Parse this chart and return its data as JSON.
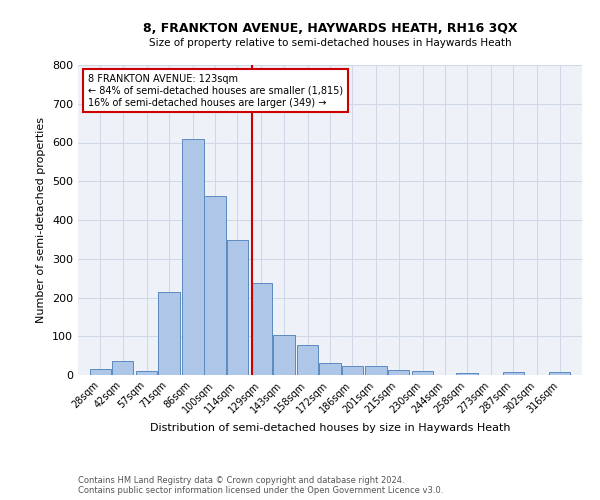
{
  "title": "8, FRANKTON AVENUE, HAYWARDS HEATH, RH16 3QX",
  "subtitle": "Size of property relative to semi-detached houses in Haywards Heath",
  "xlabel": "Distribution of semi-detached houses by size in Haywards Heath",
  "ylabel": "Number of semi-detached properties",
  "footnote1": "Contains HM Land Registry data © Crown copyright and database right 2024.",
  "footnote2": "Contains public sector information licensed under the Open Government Licence v3.0.",
  "annotation_line1": "8 FRANKTON AVENUE: 123sqm",
  "annotation_line2": "← 84% of semi-detached houses are smaller (1,815)",
  "annotation_line3": "16% of semi-detached houses are larger (349) →",
  "property_line_x": 123,
  "bar_centers": [
    28,
    42,
    57,
    71,
    86,
    100,
    114,
    129,
    143,
    158,
    172,
    186,
    201,
    215,
    230,
    244,
    258,
    273,
    287,
    302,
    316
  ],
  "bar_heights": [
    15,
    37,
    10,
    213,
    608,
    463,
    348,
    237,
    102,
    77,
    30,
    22,
    22,
    14,
    10,
    0,
    5,
    0,
    7,
    0,
    7
  ],
  "bar_width": 13.5,
  "bar_color": "#aec6e8",
  "bar_edge_color": "#5a8abf",
  "vline_color": "#cc0000",
  "annotation_box_edge": "#cc0000",
  "grid_color": "#d0d8e8",
  "background_color": "#eef2f8",
  "ylim": [
    0,
    800
  ],
  "yticks": [
    0,
    100,
    200,
    300,
    400,
    500,
    600,
    700,
    800
  ],
  "tick_labels": [
    "28sqm",
    "42sqm",
    "57sqm",
    "71sqm",
    "86sqm",
    "100sqm",
    "114sqm",
    "129sqm",
    "143sqm",
    "158sqm",
    "172sqm",
    "186sqm",
    "201sqm",
    "215sqm",
    "230sqm",
    "244sqm",
    "258sqm",
    "273sqm",
    "287sqm",
    "302sqm",
    "316sqm"
  ]
}
